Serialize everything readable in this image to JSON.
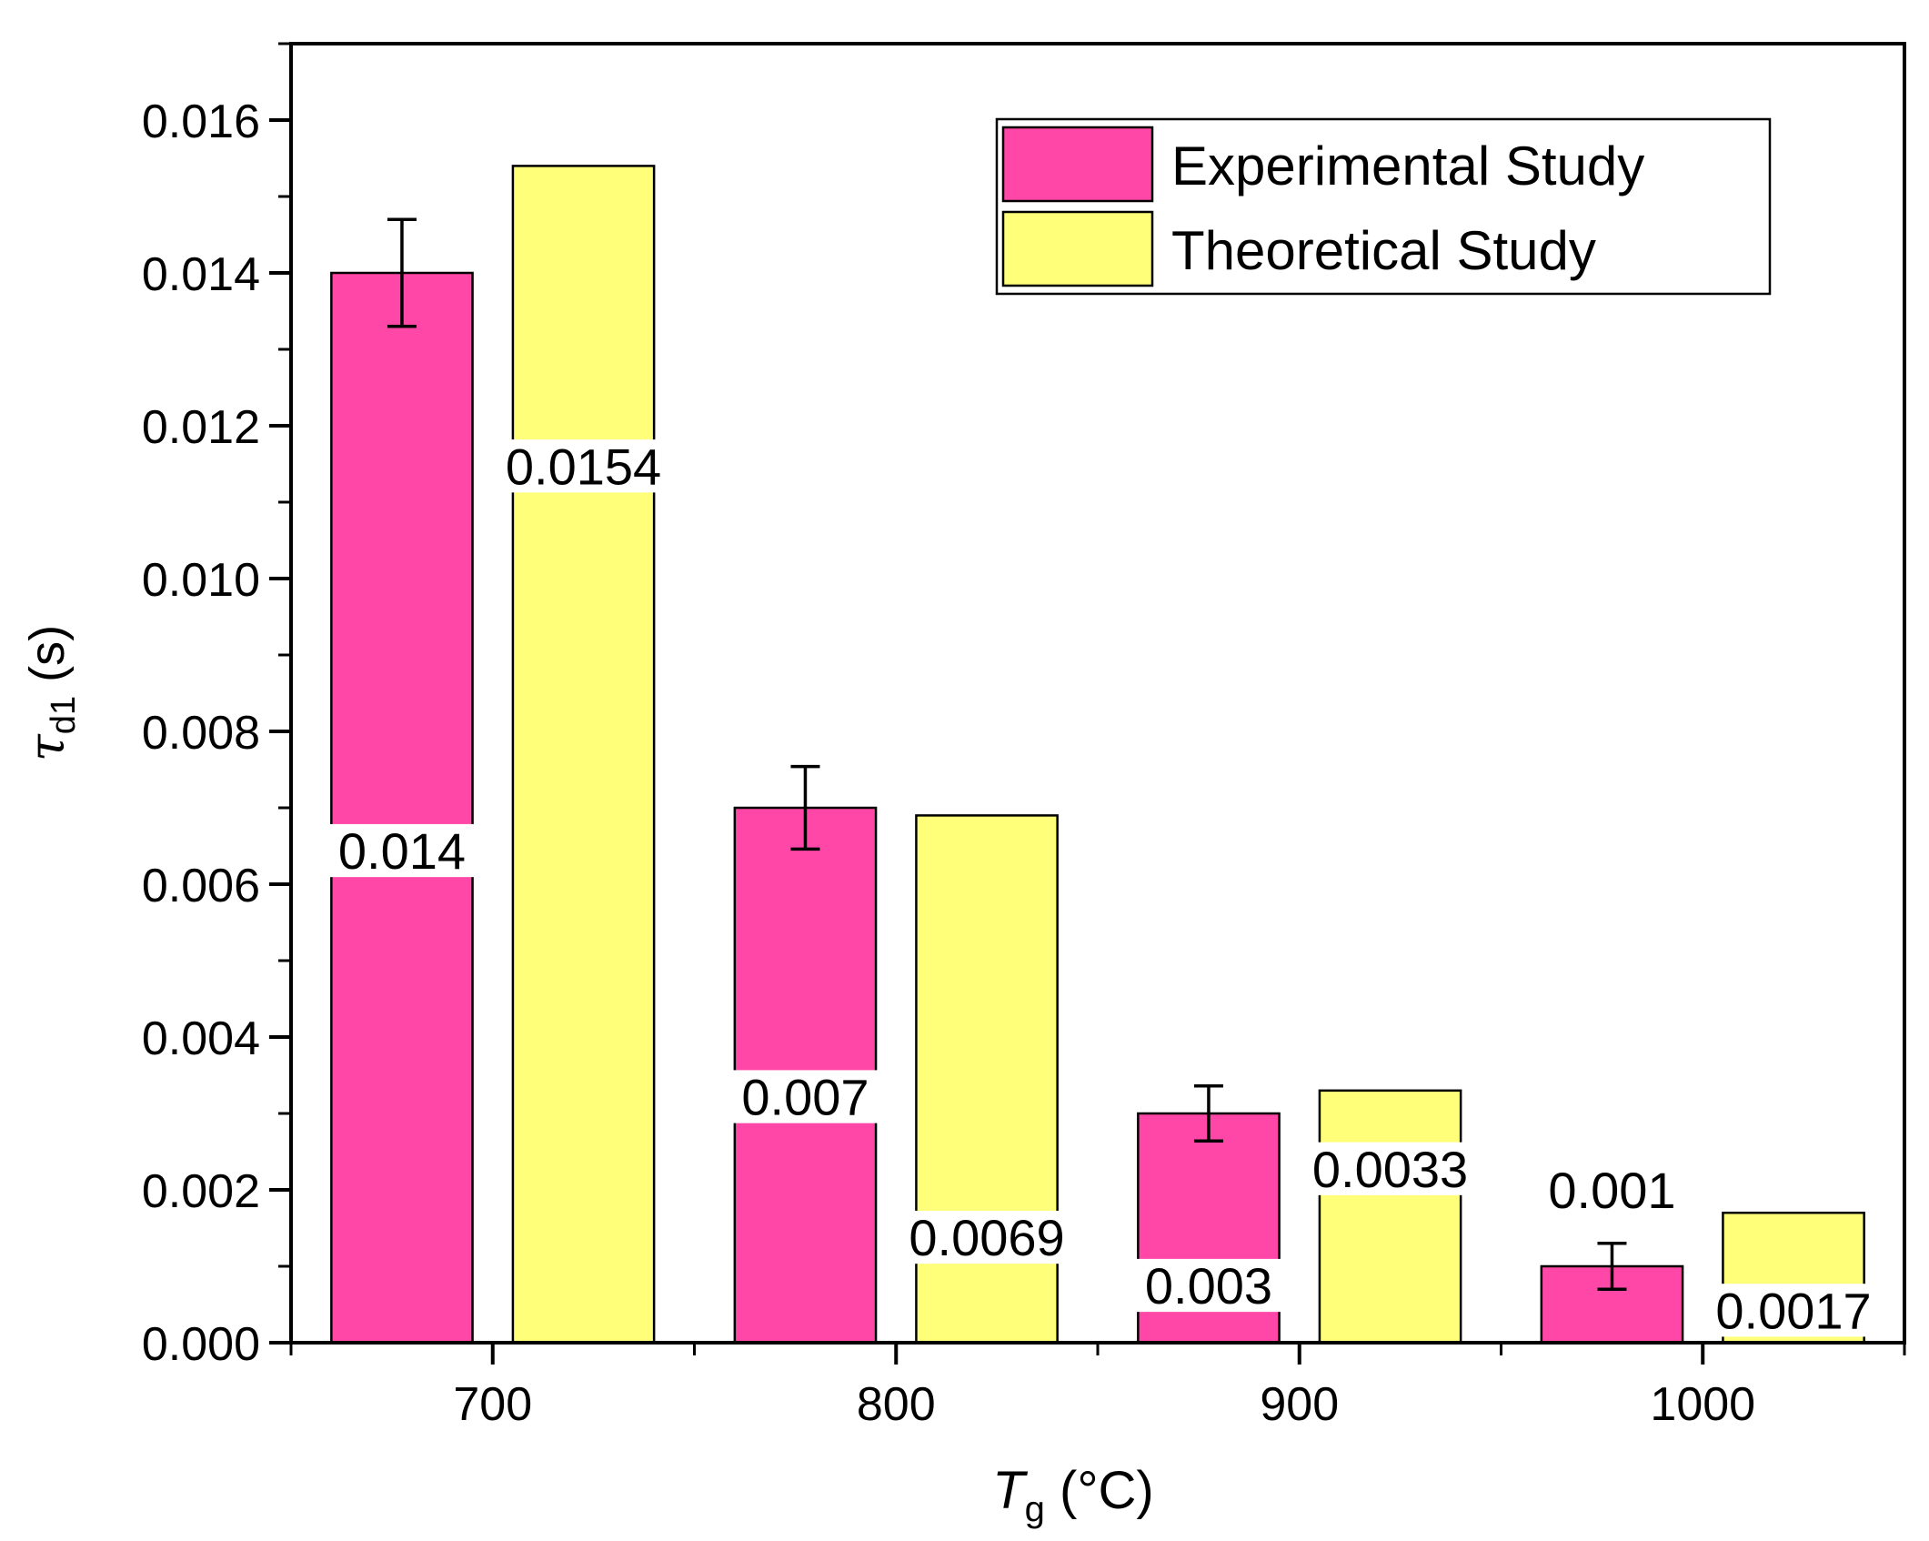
{
  "chart_data": {
    "type": "bar",
    "categories": [
      "700",
      "800",
      "900",
      "1000"
    ],
    "x_ticks": [
      "700",
      "800",
      "900",
      "1000"
    ],
    "xlim": [
      650,
      1050
    ],
    "ylim": [
      0,
      0.017
    ],
    "y_ticks": [
      "0.000",
      "0.002",
      "0.004",
      "0.006",
      "0.008",
      "0.010",
      "0.012",
      "0.014",
      "0.016"
    ],
    "xlabel": {
      "symbol": "T",
      "subscript": "g",
      "unit": " (°C)"
    },
    "ylabel": {
      "symbol": "τ",
      "subscript": "d1",
      "unit": " (s)"
    },
    "legend_position": "top-right",
    "series": [
      {
        "name": "Experimental Study",
        "color": "#ff47a8",
        "x": [
          677.5,
          777.5,
          877.5,
          977.5
        ],
        "values": [
          0.014,
          0.007,
          0.003,
          0.001
        ],
        "errors": [
          0.0007,
          0.00054,
          0.00036,
          0.0003
        ],
        "labels": [
          "0.014",
          "0.007",
          "0.003",
          "0.001"
        ]
      },
      {
        "name": "Theoretical Study",
        "color": "#ffff7a",
        "x": [
          722.5,
          822.5,
          922.5,
          1022.5
        ],
        "values": [
          0.0154,
          0.0069,
          0.0033,
          0.0017
        ],
        "labels": [
          "0.0154",
          "0.0069",
          "0.0033",
          "0.0017"
        ]
      }
    ]
  }
}
